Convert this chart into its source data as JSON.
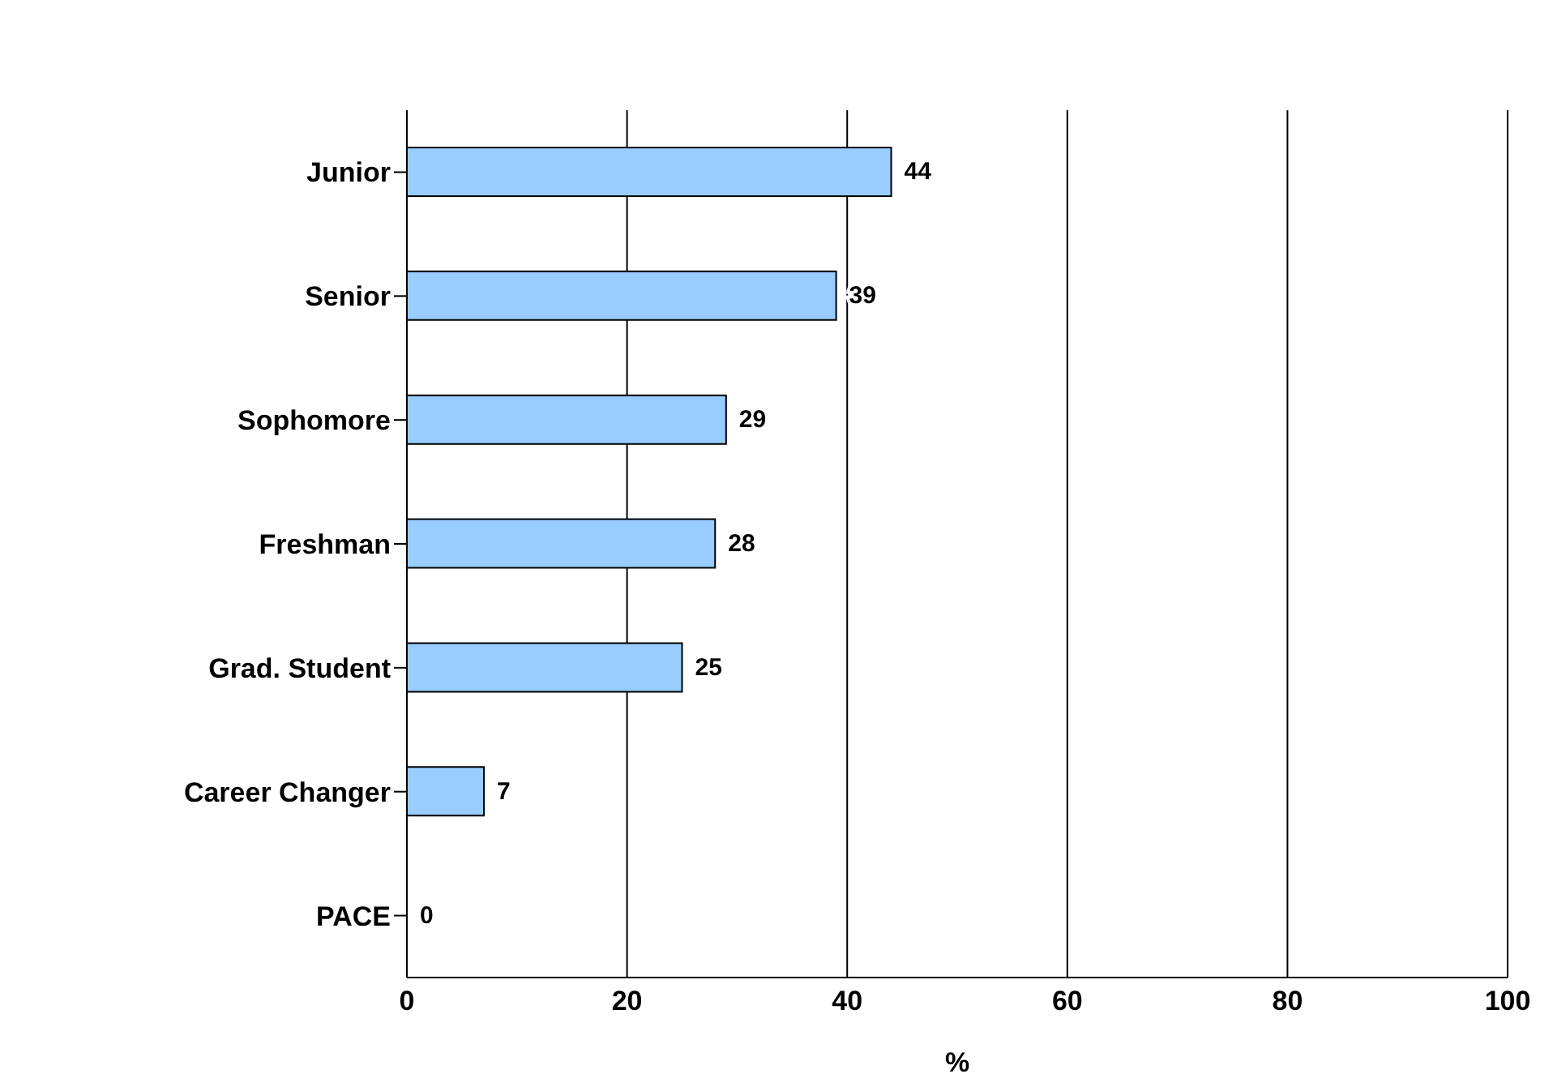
{
  "chart_data": {
    "type": "bar",
    "orientation": "horizontal",
    "xlabel": "%",
    "categories": [
      "Junior",
      "Senior ",
      "Sophomore",
      "Freshman",
      "Grad. Student",
      "Career Changer",
      "PACE"
    ],
    "values": [
      44,
      39,
      29,
      28,
      25,
      7,
      0
    ],
    "color": "#99ccff",
    "xlim": [
      0,
      100
    ],
    "xticks": [
      0,
      20,
      40,
      60,
      80,
      100
    ],
    "grid": "x",
    "data_labels": true,
    "legend": false
  }
}
